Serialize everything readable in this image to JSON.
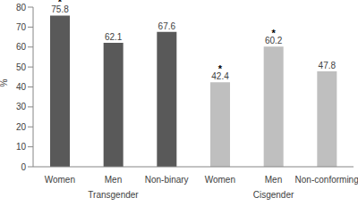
{
  "chart_data": {
    "type": "bar",
    "y_label": "%",
    "categories": [
      "Women",
      "Men",
      "Non-binary",
      "Women",
      "Men",
      "Non-conforming"
    ],
    "groups": [
      "Transgender",
      "Transgender",
      "Transgender",
      "Cisgender",
      "Cisgender",
      "Cisgender"
    ],
    "values": [
      75.8,
      62.1,
      67.6,
      42.4,
      60.2,
      47.8
    ],
    "colors": [
      "#595959",
      "#595959",
      "#595959",
      "#bfbfbf",
      "#bfbfbf",
      "#bfbfbf"
    ],
    "annotation_text": "*",
    "annotated": [
      true,
      false,
      false,
      true,
      true,
      false
    ],
    "ylim": [
      0,
      80
    ],
    "yticks": [
      0,
      10,
      20,
      30,
      40,
      50,
      60,
      70,
      80
    ],
    "grid": false,
    "data_labels": true
  }
}
